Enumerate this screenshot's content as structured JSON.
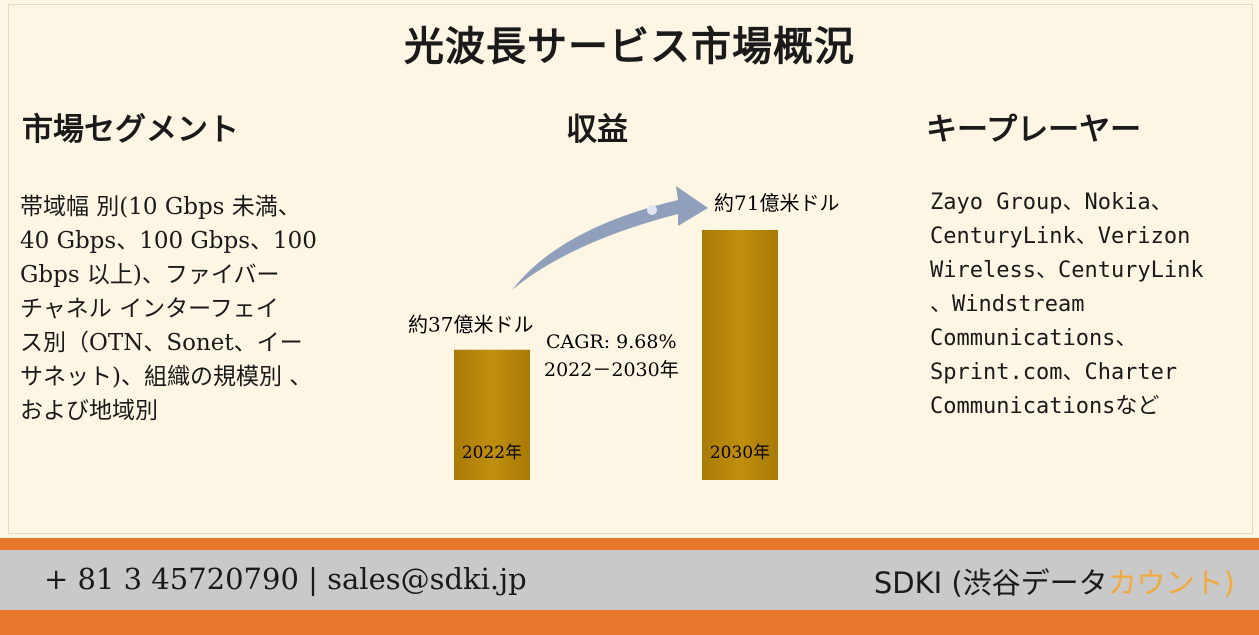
{
  "title": "光波長サービス市場概況",
  "segments": {
    "heading": "市場セグメント",
    "text": "帯域幅 別(10 Gbps 未満、\n40 Gbps、100 Gbps、100\nGbps 以上)、ファイバー\nチャネル インターフェイ\nス別（OTN、Sonet、イー\nサネット)、組織の規模別 、\nおよび地域別"
  },
  "revenue": {
    "heading": "収益",
    "cagr_line1": "CAGR: 9.68%",
    "cagr_line2": "2022－2030年"
  },
  "players": {
    "heading": "キープレーヤー",
    "text": "Zayo  Group、Nokia、\nCenturyLink、Verizon\nWireless、CenturyLink\n、Windstream\nCommunications、\nSprint.com、Charter\nCommunicationsなど"
  },
  "chart_data": {
    "type": "bar",
    "categories": [
      "2022年",
      "2030年"
    ],
    "values": [
      37,
      71
    ],
    "data_labels": [
      "約37億米ドル",
      "約71億米ドル"
    ],
    "unit": "億米ドル",
    "colors": {
      "bar": "#b8860b",
      "arrow": "#8a9ab8"
    }
  },
  "footer": {
    "contact": "+ 81 3 45720790 | sales@sdki.jp",
    "brand_main": "SDKI (渋谷データ",
    "brand_accent": "カウント)"
  }
}
